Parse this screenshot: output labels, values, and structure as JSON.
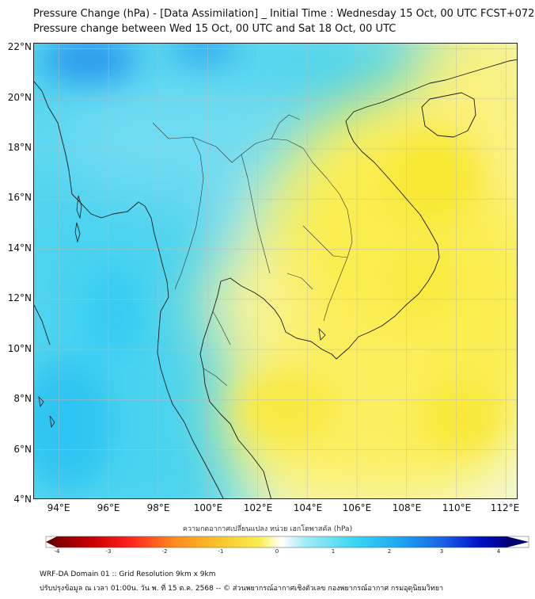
{
  "title_line1": "Pressure Change (hPa) - [Data Assimilation] _ Initial Time : Wednesday 15 Oct, 00 UTC FCST+072",
  "title_line2": "Pressure change between Wed 15 Oct, 00 UTC and Sat 18 Oct, 00 UTC",
  "map": {
    "lat_labels": [
      "22°N",
      "20°N",
      "18°N",
      "16°N",
      "14°N",
      "12°N",
      "10°N",
      "8°N",
      "6°N",
      "4°N"
    ],
    "lon_labels": [
      "94°E",
      "96°E",
      "98°E",
      "100°E",
      "102°E",
      "104°E",
      "106°E",
      "108°E",
      "110°E",
      "112°E"
    ],
    "lat_values": [
      22,
      20,
      18,
      16,
      14,
      12,
      10,
      8,
      6,
      4
    ],
    "lon_values": [
      94,
      96,
      98,
      100,
      102,
      104,
      106,
      108,
      110,
      112
    ],
    "lon_range": [
      93,
      112.5
    ],
    "lat_range": [
      4,
      22.2
    ],
    "field": "pressure change (hPa)",
    "pattern": "positive (blue) over Andaman Sea, Myanmar and northern waters; negative (yellow) over Gulf of Thailand, Cambodia, southern Vietnam and South China Sea"
  },
  "colorbar": {
    "title": "ความกดอากาศเปลี่ยนแปลง หน่วย เฮกโตพาสคัล (hPa)",
    "ticks": [
      "-4",
      "-3",
      "-2",
      "-1",
      "0",
      "1",
      "2",
      "3",
      "4"
    ],
    "tick_values": [
      -4,
      -3,
      -2,
      -1,
      0,
      1,
      2,
      3,
      4
    ],
    "range": [
      -4.5,
      4.5
    ],
    "extend": "both"
  },
  "footer_line1": "WRF-DA Domain 01 :: Grid Resolution 9km x 9km",
  "footer_line2": "ปรับปรุงข้อมูล ณ เวลา 01:00น. วัน พ. ที่ 15 ต.ค. 2568 -- © ส่วนพยากรณ์อากาศเชิงตัวเลข กองพยากรณ์อากาศ กรมอุตุนิยมวิทยา",
  "colors": {
    "neg_yellow": "#fbee3c",
    "pos_cyan": "#3ad7f2",
    "pos_blue": "#1e8ef0",
    "neg_red": "#800000",
    "pos_dark": "#000080"
  }
}
